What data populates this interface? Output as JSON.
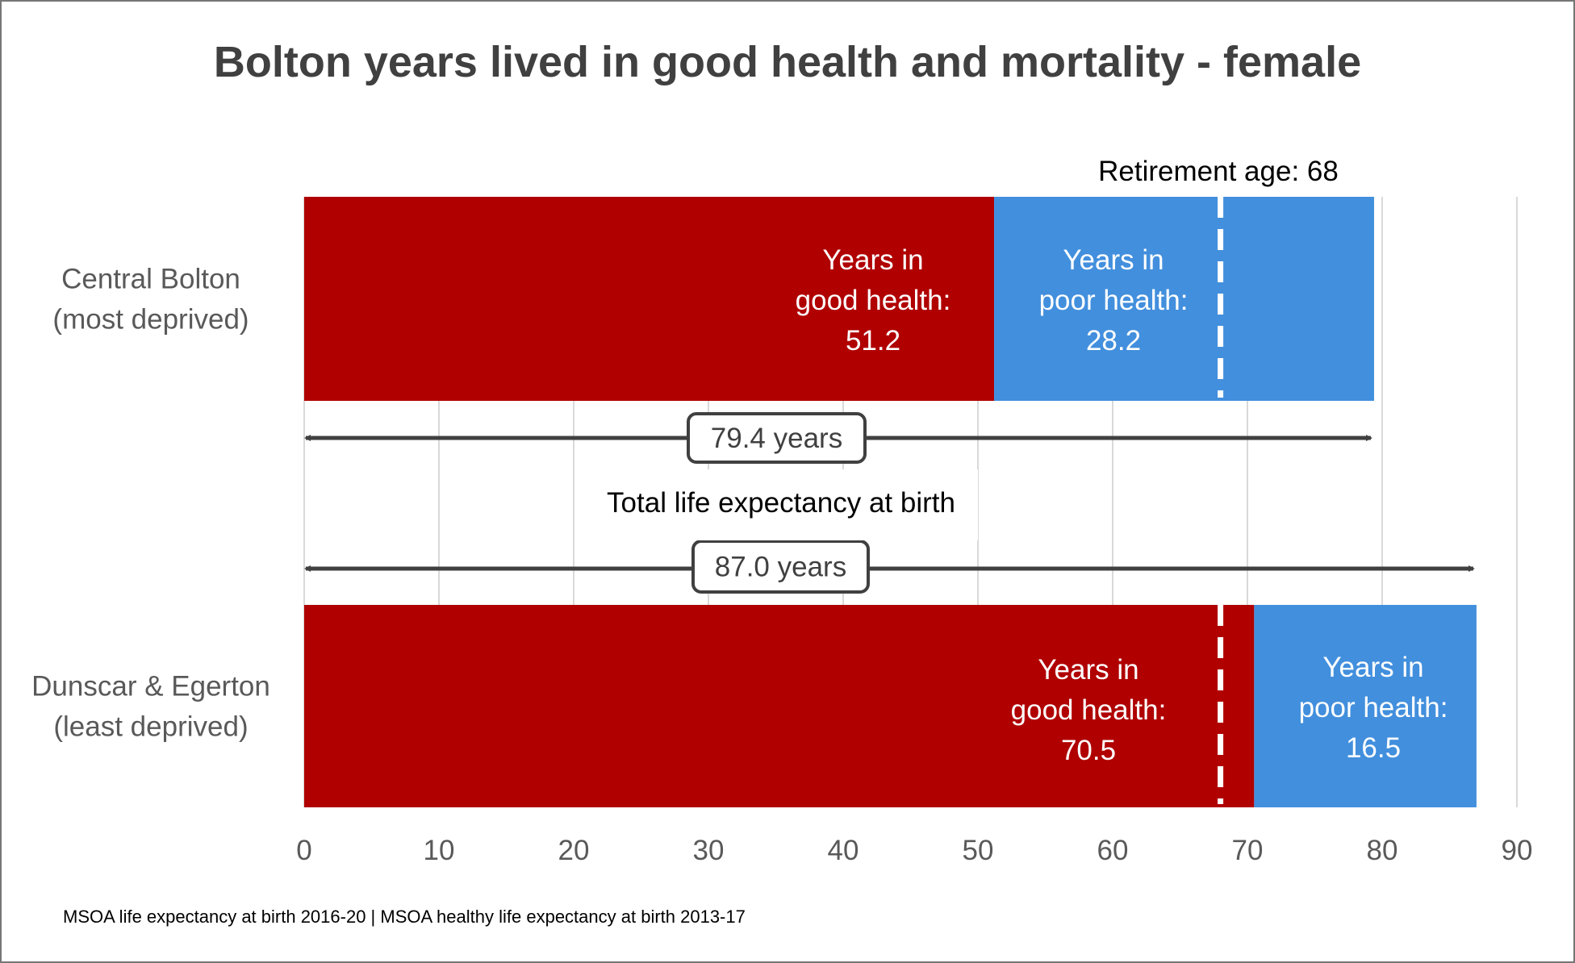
{
  "chart_data": {
    "type": "bar",
    "orientation": "horizontal-stacked",
    "title": "Bolton years lived in good health and mortality - female",
    "categories": [
      "Central Bolton\n(most deprived)",
      "Dunscar & Egerton\n(least deprived)"
    ],
    "series": [
      {
        "name": "Years in good health",
        "color": "#B00000",
        "values": [
          51.2,
          70.5
        ],
        "labels": [
          "Years in\ngood health:\n51.2",
          "Years in\ngood health:\n70.5"
        ]
      },
      {
        "name": "Years in poor health",
        "color": "#428FDD",
        "values": [
          28.2,
          16.5
        ],
        "labels": [
          "Years in\npoor health:\n28.2",
          "Years in\npoor health:\n16.5"
        ]
      }
    ],
    "totals": [
      79.4,
      87.0
    ],
    "total_labels": [
      "79.4 years",
      "87.0 years"
    ],
    "total_annotation": "Total life expectancy at birth",
    "reference_line": {
      "label": "Retirement age: 68",
      "value": 68
    },
    "xlim": [
      0,
      90
    ],
    "xticks": [
      0,
      10,
      20,
      30,
      40,
      50,
      60,
      70,
      80,
      90
    ],
    "xlabel": "",
    "ylabel": "",
    "grid": "vertical",
    "legend": "none",
    "source": "MSOA life expectancy at birth 2016-20  |  MSOA healthy life expectancy at birth 2013-17"
  },
  "colors": {
    "good": "#B00000",
    "poor": "#428FDD",
    "grid": "#D9D9D9",
    "arrow": "#404040"
  }
}
